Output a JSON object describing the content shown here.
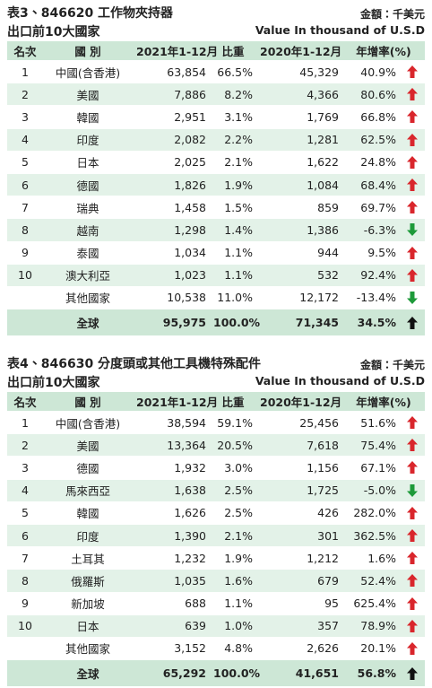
{
  "tables": [
    {
      "title": "表3、846620 工作物夾持器",
      "subtitle": "出口前10大國家",
      "unit": "金額：千美元",
      "unit_en": "Value In thousand of U.S.D",
      "columns": [
        "名次",
        "國 別",
        "2021年1-12月",
        "比重",
        "2020年1-12月",
        "年增率(%)"
      ],
      "rows": [
        [
          "1",
          "中國(含香港)",
          "63,854",
          "66.5%",
          "45,329",
          "40.9%"
        ],
        [
          "2",
          "美國",
          "7,886",
          "8.2%",
          "4,366",
          "80.6%"
        ],
        [
          "3",
          "韓國",
          "2,951",
          "3.1%",
          "1,769",
          "66.8%"
        ],
        [
          "4",
          "印度",
          "2,082",
          "2.2%",
          "1,281",
          "62.5%"
        ],
        [
          "5",
          "日本",
          "2,025",
          "2.1%",
          "1,622",
          "24.8%"
        ],
        [
          "6",
          "德國",
          "1,826",
          "1.9%",
          "1,084",
          "68.4%"
        ],
        [
          "7",
          "瑞典",
          "1,458",
          "1.5%",
          "859",
          "69.7%"
        ],
        [
          "8",
          "越南",
          "1,298",
          "1.4%",
          "1,386",
          "-6.3%"
        ],
        [
          "9",
          "泰國",
          "1,034",
          "1.1%",
          "944",
          "9.5%"
        ],
        [
          "10",
          "澳大利亞",
          "1,023",
          "1.1%",
          "532",
          "92.4%"
        ],
        [
          null,
          "其他國家",
          "10,538",
          "11.0%",
          "12,172",
          "-13.4%"
        ]
      ],
      "total": [
        "全球",
        "95,975",
        "100.0%",
        "71,345",
        "34.5%"
      ]
    },
    {
      "title": "表4、846630 分度頭或其他工具機特殊配件",
      "subtitle": "出口前10大國家",
      "unit": "金額：千美元",
      "unit_en": "Value In thousand of U.S.D",
      "columns": [
        "名次",
        "國 別",
        "2021年1-12月",
        "比重",
        "2020年1-12月",
        "年增率(%)"
      ],
      "rows": [
        [
          "1",
          "中國(含香港)",
          "38,594",
          "59.1%",
          "25,456",
          "51.6%"
        ],
        [
          "2",
          "美國",
          "13,364",
          "20.5%",
          "7,618",
          "75.4%"
        ],
        [
          "3",
          "德國",
          "1,932",
          "3.0%",
          "1,156",
          "67.1%"
        ],
        [
          "4",
          "馬來西亞",
          "1,638",
          "2.5%",
          "1,725",
          "-5.0%"
        ],
        [
          "5",
          "韓國",
          "1,626",
          "2.5%",
          "426",
          "282.0%"
        ],
        [
          "6",
          "印度",
          "1,390",
          "2.1%",
          "301",
          "362.5%"
        ],
        [
          "7",
          "土耳其",
          "1,232",
          "1.9%",
          "1,212",
          "1.6%"
        ],
        [
          "8",
          "俄羅斯",
          "1,035",
          "1.6%",
          "679",
          "52.4%"
        ],
        [
          "9",
          "新加坡",
          "688",
          "1.1%",
          "95",
          "625.4%"
        ],
        [
          "10",
          "日本",
          "639",
          "1.0%",
          "357",
          "78.9%"
        ],
        [
          null,
          "其他國家",
          "3,152",
          "4.8%",
          "2,626",
          "20.1%"
        ]
      ],
      "total": [
        "全球",
        "65,292",
        "100.0%",
        "41,651",
        "56.8%"
      ]
    }
  ]
}
